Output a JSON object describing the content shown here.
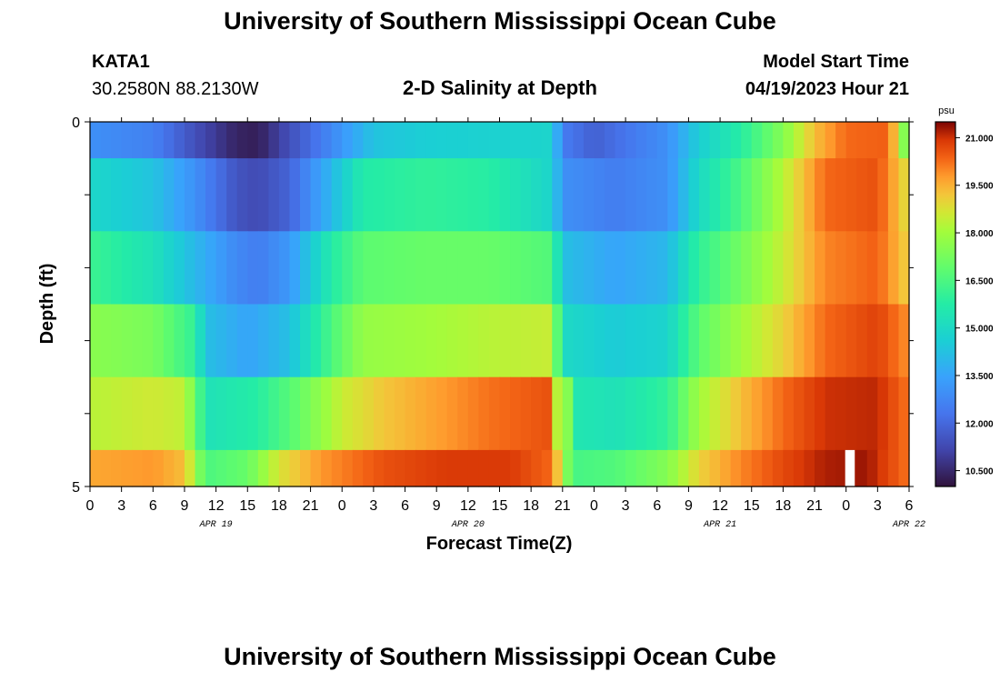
{
  "header": {
    "title": "University of Southern Mississippi Ocean Cube",
    "station": "KATA1",
    "coords": "30.2580N  88.2130W",
    "subtitle": "2-D Salinity at Depth",
    "model_start_label": "Model Start Time",
    "model_start_value": "04/19/2023 Hour 21"
  },
  "footer": {
    "title": "University of Southern Mississippi Ocean Cube"
  },
  "chart_data": {
    "type": "heatmap",
    "title": "2-D Salinity at Depth",
    "xlabel": "Forecast Time(Z)",
    "ylabel": "Depth (ft)",
    "ylim": [
      0,
      5
    ],
    "x_tick_labels": [
      "0",
      "3",
      "6",
      "9",
      "12",
      "15",
      "18",
      "21",
      "0",
      "3",
      "6",
      "9",
      "12",
      "15",
      "18",
      "21",
      "0",
      "3",
      "6",
      "9",
      "12",
      "15",
      "18",
      "21",
      "0",
      "3",
      "6"
    ],
    "y_tick_labels": [
      "0",
      "5"
    ],
    "date_labels": [
      {
        "label": "APR 19",
        "hour": 12
      },
      {
        "label": "APR 20",
        "hour": 36
      },
      {
        "label": "APR 21",
        "hour": 60
      },
      {
        "label": "APR 22",
        "hour": 78
      }
    ],
    "x_range_hours": [
      0,
      78
    ],
    "colorbar": {
      "unit": "psu",
      "min": 10.0,
      "max": 21.5,
      "tick_labels": [
        "21.000",
        "19.500",
        "18.000",
        "16.500",
        "15.000",
        "13.500",
        "12.000",
        "10.500"
      ],
      "tick_values": [
        21.0,
        19.5,
        18.0,
        16.5,
        15.0,
        13.5,
        12.0,
        10.5
      ]
    },
    "depth_layers": [
      {
        "depth_range": [
          0.0,
          0.5
        ],
        "keypoints": [
          [
            0,
            13.0
          ],
          [
            6,
            12.6
          ],
          [
            10,
            11.4
          ],
          [
            14,
            10.4
          ],
          [
            16,
            10.3
          ],
          [
            19,
            11.4
          ],
          [
            23,
            12.8
          ],
          [
            27,
            14.3
          ],
          [
            32,
            14.6
          ],
          [
            44,
            14.8
          ],
          [
            45,
            12.5
          ],
          [
            48,
            11.8
          ],
          [
            55,
            13.0
          ],
          [
            58,
            14.6
          ],
          [
            62,
            15.8
          ],
          [
            66,
            17.5
          ],
          [
            69,
            19.3
          ],
          [
            72,
            20.3
          ],
          [
            76,
            20.4
          ],
          [
            77.3,
            18.0
          ],
          [
            78,
            16.4
          ]
        ]
      },
      {
        "depth_range": [
          0.5,
          1.5
        ],
        "keypoints": [
          [
            0,
            14.9
          ],
          [
            6,
            14.3
          ],
          [
            10,
            13.0
          ],
          [
            14,
            11.5
          ],
          [
            16,
            11.3
          ],
          [
            19,
            11.9
          ],
          [
            23,
            14.0
          ],
          [
            26,
            15.7
          ],
          [
            32,
            16.0
          ],
          [
            38,
            15.8
          ],
          [
            44,
            14.8
          ],
          [
            45,
            13.0
          ],
          [
            50,
            12.5
          ],
          [
            55,
            13.0
          ],
          [
            58,
            15.0
          ],
          [
            62,
            16.5
          ],
          [
            66,
            18.3
          ],
          [
            70,
            20.3
          ],
          [
            75,
            20.6
          ],
          [
            77.5,
            19.0
          ],
          [
            78,
            16.8
          ]
        ]
      },
      {
        "depth_range": [
          1.5,
          2.5
        ],
        "keypoints": [
          [
            0,
            16.2
          ],
          [
            6,
            15.3
          ],
          [
            10,
            14.0
          ],
          [
            14,
            12.8
          ],
          [
            16,
            12.5
          ],
          [
            19,
            13.2
          ],
          [
            23,
            15.7
          ],
          [
            26,
            16.8
          ],
          [
            32,
            17.0
          ],
          [
            38,
            17.0
          ],
          [
            44,
            16.6
          ],
          [
            45,
            14.2
          ],
          [
            50,
            13.5
          ],
          [
            55,
            14.0
          ],
          [
            58,
            16.0
          ],
          [
            62,
            17.2
          ],
          [
            66,
            18.5
          ],
          [
            70,
            20.0
          ],
          [
            75,
            20.4
          ],
          [
            77.5,
            19.2
          ],
          [
            78,
            17.0
          ]
        ]
      },
      {
        "depth_range": [
          2.5,
          3.5
        ],
        "keypoints": [
          [
            0,
            17.6
          ],
          [
            6,
            17.3
          ],
          [
            10,
            16.0
          ],
          [
            11,
            14.2
          ],
          [
            15,
            13.5
          ],
          [
            19,
            14.2
          ],
          [
            23,
            16.5
          ],
          [
            26,
            17.8
          ],
          [
            32,
            18.0
          ],
          [
            38,
            18.3
          ],
          [
            44,
            18.5
          ],
          [
            45,
            15.0
          ],
          [
            50,
            14.5
          ],
          [
            55,
            14.8
          ],
          [
            58,
            16.8
          ],
          [
            62,
            18.0
          ],
          [
            66,
            19.0
          ],
          [
            70,
            20.3
          ],
          [
            75,
            20.8
          ],
          [
            77.5,
            20.0
          ],
          [
            78,
            18.0
          ]
        ]
      },
      {
        "depth_range": [
          3.5,
          4.5
        ],
        "keypoints": [
          [
            0,
            18.3
          ],
          [
            6,
            18.6
          ],
          [
            9,
            18.4
          ],
          [
            10.5,
            16.3
          ],
          [
            11,
            15.3
          ],
          [
            16,
            15.8
          ],
          [
            20,
            17.0
          ],
          [
            24,
            18.5
          ],
          [
            28,
            19.2
          ],
          [
            32,
            19.6
          ],
          [
            38,
            20.2
          ],
          [
            44,
            20.6
          ],
          [
            44.5,
            18.3
          ],
          [
            45,
            19.5
          ],
          [
            46,
            15.5
          ],
          [
            50,
            15.3
          ],
          [
            55,
            16.0
          ],
          [
            58,
            18.0
          ],
          [
            62,
            19.3
          ],
          [
            66,
            20.3
          ],
          [
            70,
            21.0
          ],
          [
            75,
            21.1
          ],
          [
            77.5,
            20.3
          ],
          [
            78,
            19.0
          ]
        ]
      },
      {
        "depth_range": [
          4.5,
          5.0
        ],
        "keypoints": [
          [
            0,
            19.6
          ],
          [
            6,
            19.8
          ],
          [
            9,
            19.3
          ],
          [
            10,
            18.0
          ],
          [
            11,
            16.5
          ],
          [
            15,
            17.0
          ],
          [
            18,
            18.7
          ],
          [
            22,
            19.8
          ],
          [
            28,
            20.6
          ],
          [
            34,
            20.9
          ],
          [
            40,
            20.9
          ],
          [
            44,
            20.3
          ],
          [
            45,
            18.2
          ],
          [
            46,
            16.4
          ],
          [
            50,
            16.6
          ],
          [
            55,
            17.5
          ],
          [
            58,
            19.0
          ],
          [
            62,
            20.0
          ],
          [
            66,
            20.7
          ],
          [
            70,
            21.2
          ],
          [
            74,
            21.3
          ],
          [
            77.5,
            20.3
          ],
          [
            78,
            19.0
          ]
        ]
      }
    ],
    "missing_hours": [
      72
    ]
  }
}
